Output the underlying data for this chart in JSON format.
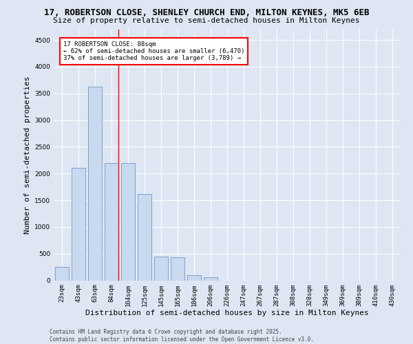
{
  "title_line1": "17, ROBERTSON CLOSE, SHENLEY CHURCH END, MILTON KEYNES, MK5 6EB",
  "title_line2": "Size of property relative to semi-detached houses in Milton Keynes",
  "xlabel": "Distribution of semi-detached houses by size in Milton Keynes",
  "ylabel": "Number of semi-detached properties",
  "categories": [
    "23sqm",
    "43sqm",
    "63sqm",
    "84sqm",
    "104sqm",
    "125sqm",
    "145sqm",
    "165sqm",
    "186sqm",
    "206sqm",
    "226sqm",
    "247sqm",
    "267sqm",
    "287sqm",
    "308sqm",
    "328sqm",
    "349sqm",
    "369sqm",
    "389sqm",
    "410sqm",
    "430sqm"
  ],
  "values": [
    250,
    2100,
    3620,
    2200,
    2200,
    1620,
    440,
    430,
    100,
    60,
    0,
    0,
    0,
    0,
    0,
    0,
    0,
    0,
    0,
    0,
    0
  ],
  "bar_color": "#c9d9f0",
  "bar_edge_color": "#7096c8",
  "annotation_text": "17 ROBERTSON CLOSE: 88sqm\n← 62% of semi-detached houses are smaller (6,470)\n37% of semi-detached houses are larger (3,789) →",
  "annotation_box_color": "white",
  "annotation_box_edge_color": "red",
  "vline_color": "red",
  "vline_x": 3.42,
  "ylim": [
    0,
    4700
  ],
  "yticks": [
    0,
    500,
    1000,
    1500,
    2000,
    2500,
    3000,
    3500,
    4000,
    4500
  ],
  "background_color": "#dde6f2",
  "footer_text": "Contains HM Land Registry data © Crown copyright and database right 2025.\nContains public sector information licensed under the Open Government Licence v3.0.",
  "title_fontsize": 9,
  "subtitle_fontsize": 8,
  "axis_label_fontsize": 8,
  "tick_fontsize": 6.5,
  "annotation_fontsize": 6.5,
  "footer_fontsize": 5.5
}
